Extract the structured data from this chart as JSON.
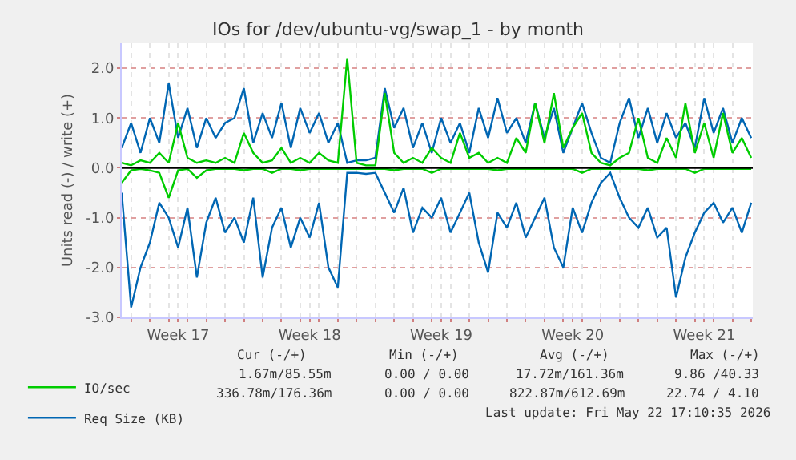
{
  "chart_data": {
    "type": "line",
    "title": "IOs for /dev/ubuntu-vg/swap_1 - by month",
    "ylabel": "Units read (-) / write (+)",
    "x": [
      "2026-04-20T12:00",
      "2026-04-21T00:00",
      "2026-04-21T12:00",
      "2026-04-22T00:00",
      "2026-04-22T12:00",
      "2026-04-23T00:00",
      "2026-04-23T12:00",
      "2026-04-24T00:00",
      "2026-04-24T12:00",
      "2026-04-25T00:00",
      "2026-04-25T12:00",
      "2026-04-26T00:00",
      "2026-04-26T12:00",
      "2026-04-27T00:00",
      "2026-04-27T12:00",
      "2026-04-28T00:00",
      "2026-04-28T12:00",
      "2026-04-29T00:00",
      "2026-04-29T12:00",
      "2026-04-30T00:00",
      "2026-04-30T12:00",
      "2026-05-01T00:00",
      "2026-05-01T12:00",
      "2026-05-02T00:00",
      "2026-05-02T12:00",
      "2026-05-03T00:00",
      "2026-05-03T12:00",
      "2026-05-04T00:00",
      "2026-05-04T12:00",
      "2026-05-05T00:00",
      "2026-05-05T12:00",
      "2026-05-06T00:00",
      "2026-05-06T12:00",
      "2026-05-07T00:00",
      "2026-05-07T12:00",
      "2026-05-08T00:00",
      "2026-05-08T12:00",
      "2026-05-09T00:00",
      "2026-05-09T12:00",
      "2026-05-10T00:00",
      "2026-05-10T12:00",
      "2026-05-11T00:00",
      "2026-05-11T12:00",
      "2026-05-12T00:00",
      "2026-05-12T12:00",
      "2026-05-13T00:00",
      "2026-05-13T12:00",
      "2026-05-14T00:00",
      "2026-05-14T12:00",
      "2026-05-15T00:00",
      "2026-05-15T12:00",
      "2026-05-16T00:00",
      "2026-05-16T12:00",
      "2026-05-17T00:00",
      "2026-05-17T12:00",
      "2026-05-18T00:00",
      "2026-05-18T12:00",
      "2026-05-19T00:00",
      "2026-05-19T12:00",
      "2026-05-20T00:00",
      "2026-05-20T12:00",
      "2026-05-21T00:00",
      "2026-05-21T12:00",
      "2026-05-22T00:00",
      "2026-05-22T12:00",
      "2026-05-23T00:00",
      "2026-05-23T12:00",
      "2026-05-24T00:00"
    ],
    "series": [
      {
        "color": "#0066b3",
        "values": [
          -0.5,
          -2.8,
          -2.0,
          -1.5,
          -0.7,
          -1.0,
          -1.6,
          -0.8,
          -2.2,
          -1.1,
          -0.6,
          -1.3,
          -1.0,
          -1.5,
          -0.6,
          -2.2,
          -1.2,
          -0.8,
          -1.6,
          -1.0,
          -1.4,
          -0.7,
          -2.0,
          -2.4,
          -0.1,
          -0.1,
          -0.12,
          -0.1,
          -0.5,
          -0.9,
          -0.4,
          -1.3,
          -0.8,
          -1.0,
          -0.6,
          -1.3,
          -0.9,
          -0.5,
          -1.5,
          -2.1,
          -0.9,
          -1.2,
          -0.7,
          -1.4,
          -1.0,
          -0.6,
          -1.6,
          -2.0,
          -0.8,
          -1.3,
          -0.7,
          -0.3,
          -0.1,
          -0.6,
          -1.0,
          -1.2,
          -0.8,
          -1.4,
          -1.2,
          -2.6,
          -1.8,
          -1.3,
          -0.9,
          -0.7,
          -1.1,
          -0.8,
          -1.3,
          -0.7
        ]
      },
      {
        "color": "#00cc00",
        "values": [
          -0.3,
          -0.05,
          -0.02,
          -0.05,
          -0.1,
          -0.6,
          -0.05,
          -0.02,
          -0.2,
          -0.05,
          -0.02,
          -0.02,
          -0.02,
          -0.05,
          -0.02,
          -0.02,
          -0.1,
          -0.02,
          -0.02,
          -0.05,
          -0.02,
          -0.02,
          -0.02,
          -0.02,
          -0.02,
          -0.02,
          -0.02,
          -0.02,
          -0.02,
          -0.05,
          -0.02,
          -0.02,
          -0.02,
          -0.1,
          -0.02,
          -0.02,
          -0.02,
          -0.02,
          -0.02,
          -0.02,
          -0.05,
          -0.02,
          -0.02,
          -0.02,
          -0.02,
          -0.02,
          -0.02,
          -0.02,
          -0.02,
          -0.1,
          -0.02,
          -0.02,
          -0.02,
          -0.02,
          -0.02,
          -0.02,
          -0.05,
          -0.02,
          -0.02,
          -0.02,
          -0.02,
          -0.1,
          -0.02,
          -0.02,
          -0.02,
          -0.02,
          -0.02,
          -0.02
        ]
      },
      {
        "name": "Req Size (KB)",
        "color": "#0066b3",
        "values": [
          0.4,
          0.9,
          0.3,
          1.0,
          0.5,
          1.7,
          0.6,
          1.2,
          0.4,
          1.0,
          0.6,
          0.9,
          1.0,
          1.6,
          0.5,
          1.1,
          0.6,
          1.3,
          0.4,
          1.2,
          0.7,
          1.1,
          0.5,
          0.9,
          0.1,
          0.15,
          0.15,
          0.2,
          1.6,
          0.8,
          1.2,
          0.4,
          0.9,
          0.3,
          1.0,
          0.5,
          0.9,
          0.3,
          1.2,
          0.6,
          1.4,
          0.7,
          1.0,
          0.5,
          1.3,
          0.6,
          1.2,
          0.3,
          0.8,
          1.3,
          0.7,
          0.2,
          0.1,
          0.9,
          1.4,
          0.6,
          1.2,
          0.5,
          1.1,
          0.6,
          0.9,
          0.4,
          1.4,
          0.7,
          1.2,
          0.5,
          1.0,
          0.6
        ]
      },
      {
        "name": "IO/sec",
        "color": "#00cc00",
        "values": [
          0.1,
          0.05,
          0.15,
          0.1,
          0.3,
          0.1,
          0.9,
          0.2,
          0.1,
          0.15,
          0.1,
          0.2,
          0.1,
          0.7,
          0.3,
          0.1,
          0.15,
          0.4,
          0.1,
          0.2,
          0.1,
          0.3,
          0.15,
          0.1,
          2.2,
          0.1,
          0.05,
          0.05,
          1.5,
          0.3,
          0.1,
          0.2,
          0.1,
          0.4,
          0.2,
          0.1,
          0.7,
          0.2,
          0.3,
          0.1,
          0.2,
          0.1,
          0.6,
          0.3,
          1.3,
          0.5,
          1.5,
          0.4,
          0.8,
          1.1,
          0.3,
          0.1,
          0.05,
          0.2,
          0.3,
          1.0,
          0.2,
          0.1,
          0.6,
          0.2,
          1.3,
          0.3,
          0.9,
          0.2,
          1.1,
          0.3,
          0.6,
          0.2
        ]
      }
    ],
    "xlim": [
      "2026-04-20T12:00",
      "2026-05-24T02:00"
    ],
    "xticks": [
      {
        "value": "2026-04-23T12:00",
        "label": "Week 17"
      },
      {
        "value": "2026-04-30T12:00",
        "label": "Week 18"
      },
      {
        "value": "2026-05-07T12:00",
        "label": "Week 19"
      },
      {
        "value": "2026-05-14T12:00",
        "label": "Week 20"
      },
      {
        "value": "2026-05-21T12:00",
        "label": "Week 21"
      },
      {
        "value": "2026-04-21",
        "label": null
      },
      {
        "value": "2026-04-22",
        "label": null
      },
      {
        "value": "2026-04-23",
        "label": null
      },
      {
        "value": "2026-04-24",
        "label": null
      },
      {
        "value": "2026-04-25",
        "label": null
      },
      {
        "value": "2026-04-26",
        "label": null
      },
      {
        "value": "2026-04-27",
        "label": null
      },
      {
        "value": "2026-04-28",
        "label": null
      },
      {
        "value": "2026-04-29",
        "label": null
      },
      {
        "value": "2026-04-30",
        "label": null
      },
      {
        "value": "2026-05-01",
        "label": null
      },
      {
        "value": "2026-05-02",
        "label": null
      },
      {
        "value": "2026-05-03",
        "label": null
      },
      {
        "value": "2026-05-04",
        "label": null
      },
      {
        "value": "2026-05-05",
        "label": null
      },
      {
        "value": "2026-05-06",
        "label": null
      },
      {
        "value": "2026-05-07",
        "label": null
      },
      {
        "value": "2026-05-08",
        "label": null
      },
      {
        "value": "2026-05-09",
        "label": null
      },
      {
        "value": "2026-05-10",
        "label": null
      },
      {
        "value": "2026-05-11",
        "label": null
      },
      {
        "value": "2026-05-12",
        "label": null
      },
      {
        "value": "2026-05-13",
        "label": null
      },
      {
        "value": "2026-05-14",
        "label": null
      },
      {
        "value": "2026-05-15",
        "label": null
      },
      {
        "value": "2026-05-16",
        "label": null
      },
      {
        "value": "2026-05-17",
        "label": null
      },
      {
        "value": "2026-05-18",
        "label": null
      },
      {
        "value": "2026-05-19",
        "label": null
      },
      {
        "value": "2026-05-20",
        "label": null
      },
      {
        "value": "2026-05-21",
        "label": null
      },
      {
        "value": "2026-05-22",
        "label": null
      },
      {
        "value": "2026-05-23",
        "label": null
      },
      {
        "value": "2026-05-24",
        "label": null
      }
    ],
    "ylim": [
      -3.0,
      2.5
    ],
    "yticks": [
      {
        "value": -3,
        "label": "-3.0"
      },
      {
        "value": -2,
        "label": "-2.0"
      },
      {
        "value": -1,
        "label": "-1.0"
      },
      {
        "value": 0,
        "label": "0.0"
      },
      {
        "value": 1,
        "label": "1.0"
      },
      {
        "value": 2,
        "label": "2.0"
      }
    ],
    "ref_lines": [
      {
        "axis": "y",
        "value": 0,
        "color": "#000000"
      }
    ],
    "grid": true,
    "legend": "bottom left",
    "annotations": [
      "Cur (-/+)",
      "Min (-/+)",
      "Avg (-/+)",
      "Max (-/+)",
      "1.67m/85.55m",
      "0.00 / 0.00",
      "17.72m/161.36m",
      "9.86 /40.33",
      "336.78m/176.36m",
      "0.00 / 0.00",
      "822.87m/612.69m",
      "22.74 / 4.10",
      "Last update: Fri May 22 17:10:35 2026"
    ]
  }
}
